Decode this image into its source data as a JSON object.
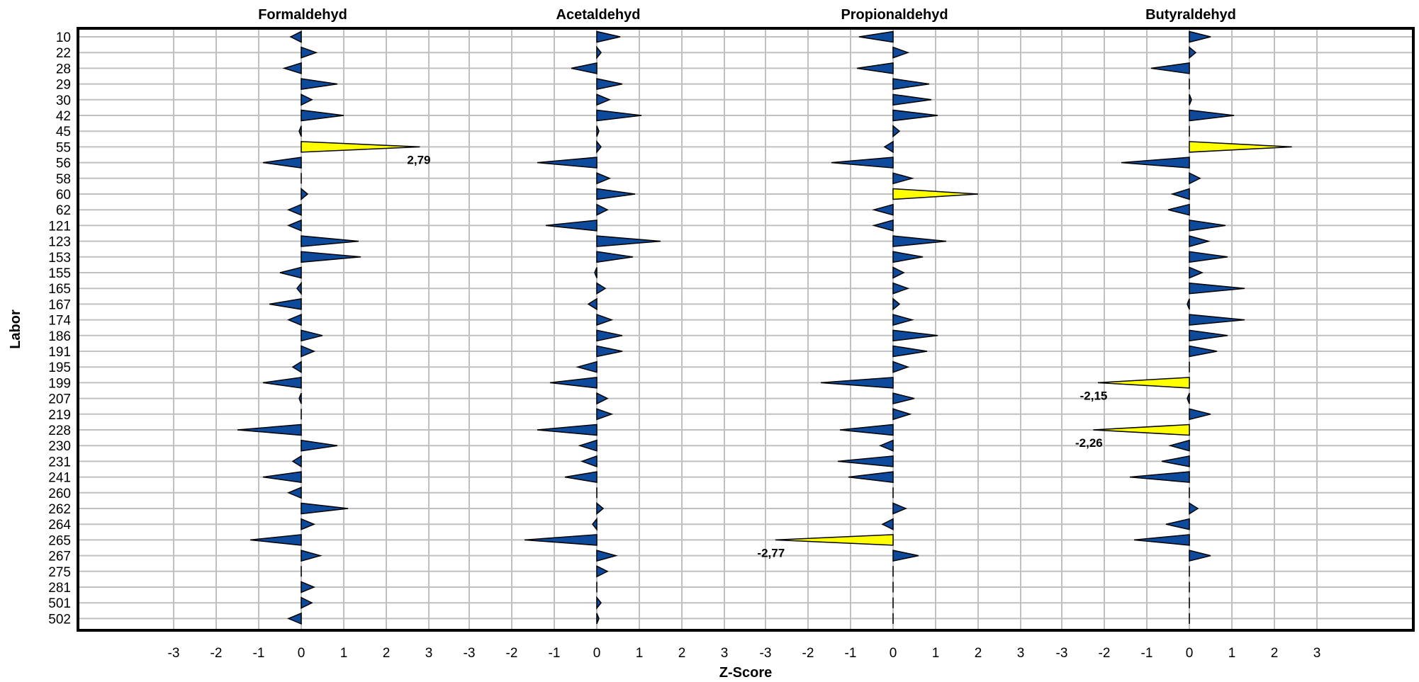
{
  "chart_data": {
    "type": "bar",
    "orientation": "horizontal",
    "xlabel": "Z-Score",
    "ylabel": "Labor",
    "xlim": [
      -3,
      3
    ],
    "x_ticks": [
      -3,
      -2,
      -1,
      0,
      1,
      2,
      3
    ],
    "grid": true,
    "categories": [
      "10",
      "22",
      "28",
      "29",
      "30",
      "42",
      "45",
      "55",
      "56",
      "58",
      "60",
      "62",
      "121",
      "123",
      "153",
      "155",
      "165",
      "167",
      "174",
      "186",
      "191",
      "195",
      "199",
      "207",
      "219",
      "228",
      "230",
      "231",
      "241",
      "260",
      "262",
      "264",
      "265",
      "267",
      "275",
      "281",
      "501",
      "502"
    ],
    "colors": {
      "normal": "#0d4a9b",
      "outlier": "#ffff00",
      "outline": "#000000"
    },
    "panels": [
      {
        "title": "Formaldehyd",
        "values": [
          -0.25,
          0.35,
          -0.4,
          0.85,
          0.25,
          1.0,
          -0.05,
          2.79,
          -0.9,
          0.0,
          0.15,
          -0.3,
          -0.3,
          1.35,
          1.4,
          -0.5,
          -0.1,
          -0.75,
          -0.3,
          0.5,
          0.3,
          -0.2,
          -0.9,
          -0.05,
          0.0,
          -1.5,
          0.85,
          -0.2,
          -0.9,
          -0.3,
          1.1,
          0.3,
          -1.2,
          0.45,
          0.0,
          0.3,
          0.25,
          -0.3
        ],
        "data_labels": [
          {
            "category": "55",
            "text": "2,79"
          }
        ]
      },
      {
        "title": "Acetaldehyd",
        "values": [
          0.55,
          0.1,
          -0.6,
          0.6,
          0.3,
          1.05,
          0.05,
          0.1,
          -1.4,
          0.3,
          0.9,
          0.25,
          -1.2,
          1.5,
          0.85,
          -0.05,
          0.2,
          -0.2,
          0.35,
          0.6,
          0.6,
          -0.45,
          -1.1,
          0.25,
          0.35,
          -1.4,
          -0.4,
          -0.35,
          -0.75,
          0.0,
          0.15,
          -0.1,
          -1.7,
          0.45,
          0.25,
          0.0,
          0.1,
          0.05
        ],
        "data_labels": []
      },
      {
        "title": "Propionaldehyd",
        "values": [
          -0.8,
          0.35,
          -0.85,
          0.85,
          0.9,
          1.05,
          0.15,
          -0.2,
          -1.45,
          0.45,
          2.0,
          -0.45,
          -0.45,
          1.25,
          0.7,
          0.25,
          0.35,
          0.15,
          0.45,
          1.05,
          0.8,
          0.35,
          -1.7,
          0.5,
          0.4,
          -1.25,
          -0.3,
          -1.3,
          -1.05,
          0.0,
          0.3,
          -0.25,
          -2.77,
          0.6,
          0.0,
          0.0,
          0.0,
          0.0
        ],
        "data_labels": [
          {
            "category": "265",
            "text": "-2,77"
          }
        ]
      },
      {
        "title": "Butyraldehyd",
        "values": [
          0.5,
          0.15,
          -0.9,
          0.0,
          0.05,
          1.05,
          0.0,
          2.41,
          -1.6,
          0.25,
          -0.4,
          -0.5,
          0.85,
          0.45,
          0.9,
          0.3,
          1.3,
          -0.05,
          1.3,
          0.9,
          0.65,
          0.0,
          -2.15,
          -0.05,
          0.5,
          -2.26,
          -0.45,
          -0.65,
          -1.4,
          0.0,
          0.2,
          -0.55,
          -1.3,
          0.5,
          0.0,
          0.0,
          0.0,
          0.0
        ],
        "data_labels": [
          {
            "category": "199",
            "text": "-2,15"
          },
          {
            "category": "228",
            "text": "-2,26"
          }
        ]
      }
    ]
  }
}
